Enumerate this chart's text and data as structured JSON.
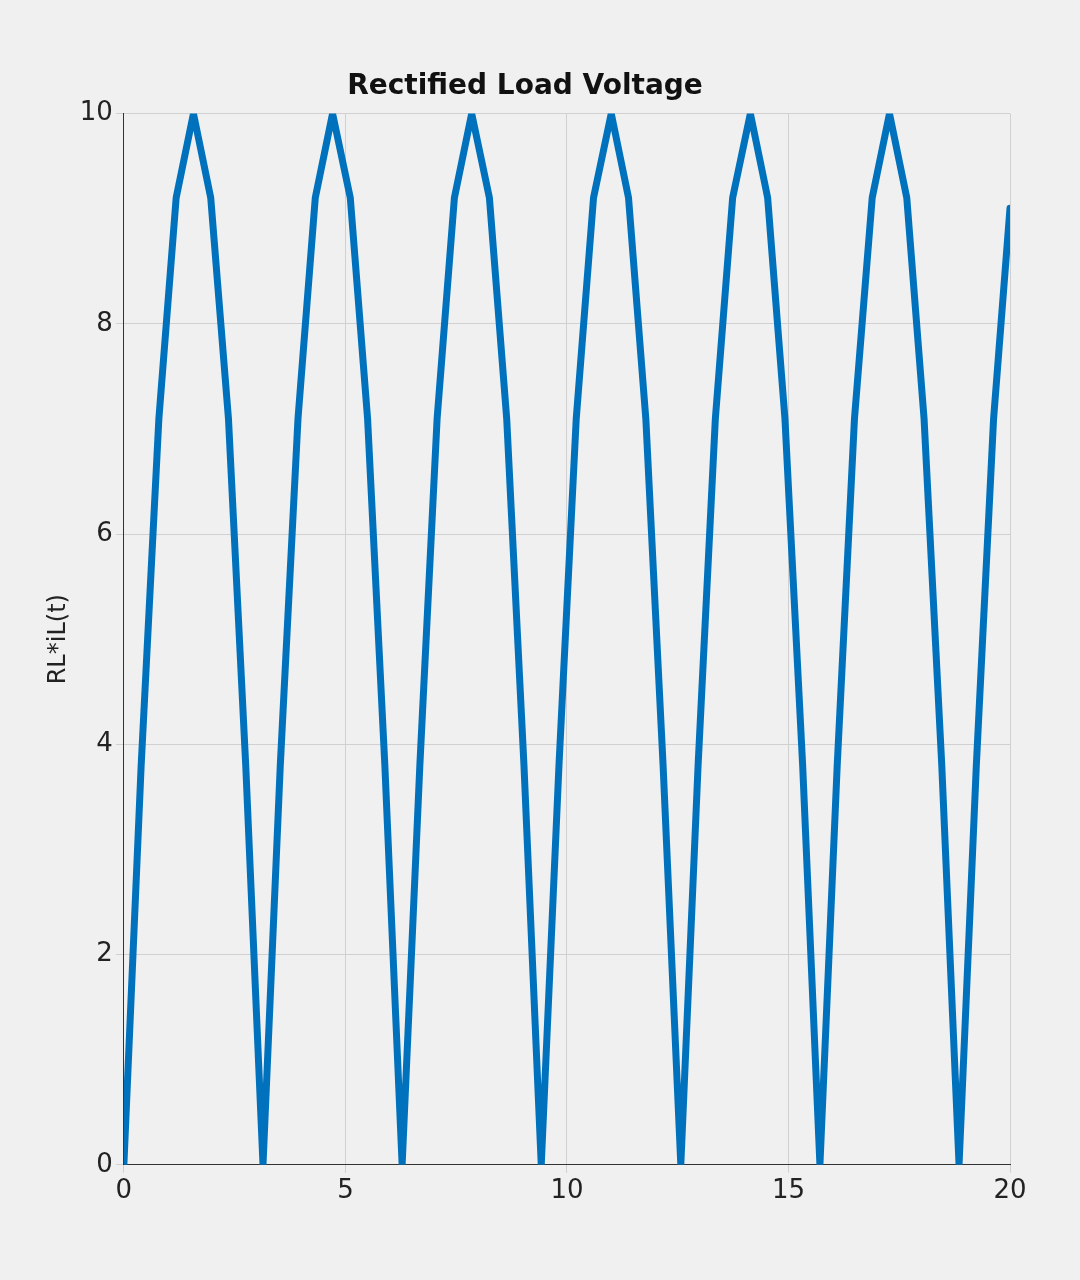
{
  "chart_data": {
    "type": "line",
    "title": "Rectified Load Voltage",
    "ylabel": "RL*iL(t)",
    "x": [
      0,
      0.39,
      0.79,
      1.18,
      1.57,
      1.96,
      2.36,
      2.75,
      3.14,
      3.53,
      3.93,
      4.32,
      4.71,
      5.11,
      5.5,
      5.89,
      6.28,
      6.68,
      7.07,
      7.46,
      7.85,
      8.25,
      8.64,
      9.03,
      9.42,
      9.82,
      10.21,
      10.6,
      11,
      11.39,
      11.78,
      12.17,
      12.57,
      12.96,
      13.35,
      13.74,
      14.14,
      14.53,
      14.92,
      15.32,
      15.71,
      16.1,
      16.49,
      16.89,
      17.28,
      17.67,
      18.06,
      18.46,
      18.85,
      19.24,
      19.63,
      20
    ],
    "series": [
      {
        "color": "#0072bd",
        "values": [
          0,
          3.8,
          7.1,
          9.2,
          10,
          9.2,
          7.1,
          3.8,
          0,
          3.8,
          7.1,
          9.2,
          10,
          9.2,
          7.1,
          3.8,
          0,
          3.8,
          7.1,
          9.2,
          10,
          9.2,
          7.1,
          3.8,
          0,
          3.8,
          7.1,
          9.2,
          10,
          9.2,
          7.1,
          3.8,
          0,
          3.8,
          7.1,
          9.2,
          10,
          9.2,
          7.1,
          3.8,
          0,
          3.8,
          7.1,
          9.2,
          10,
          9.2,
          7.1,
          3.8,
          0,
          3.8,
          7.1,
          9.1
        ]
      }
    ],
    "xlim": [
      0,
      20
    ],
    "xticks": [
      0,
      5,
      10,
      15,
      20
    ],
    "ylim": [
      0,
      10
    ],
    "yticks": [
      0,
      2,
      4,
      6,
      8,
      10
    ],
    "grid": true,
    "legend": false,
    "marker": "none",
    "line_style": "solid"
  }
}
